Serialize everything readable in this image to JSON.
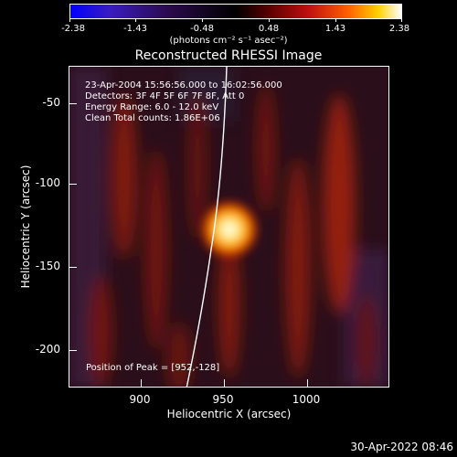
{
  "colorbar": {
    "tick_labels": [
      "-2.38",
      "-1.43",
      "-0.48",
      "0.48",
      "1.43",
      "2.38"
    ],
    "units": "(photons cm⁻² s⁻¹ asec⁻²)"
  },
  "title": "Reconstructed RHESSI Image",
  "info": {
    "time": "23-Apr-2004 15:56:56.000 to 16:02:56.000",
    "detectors": "Detectors: 3F 4F 5F 6F 7F 8F, Att 0",
    "energy": "Energy Range: 6.0 - 12.0 keV",
    "clean": "Clean     Total counts: 1.86E+06"
  },
  "peak_text": "Position of Peak = [952,-128]",
  "x_axis": {
    "label": "Heliocentric X (arcsec)",
    "ticks": [
      "900",
      "950",
      "1000"
    ]
  },
  "y_axis": {
    "label": "Heliocentric Y (arcsec)",
    "ticks": [
      "-50",
      "-100",
      "-150",
      "-200"
    ]
  },
  "timestamp": "30-Apr-2022 08:46"
}
